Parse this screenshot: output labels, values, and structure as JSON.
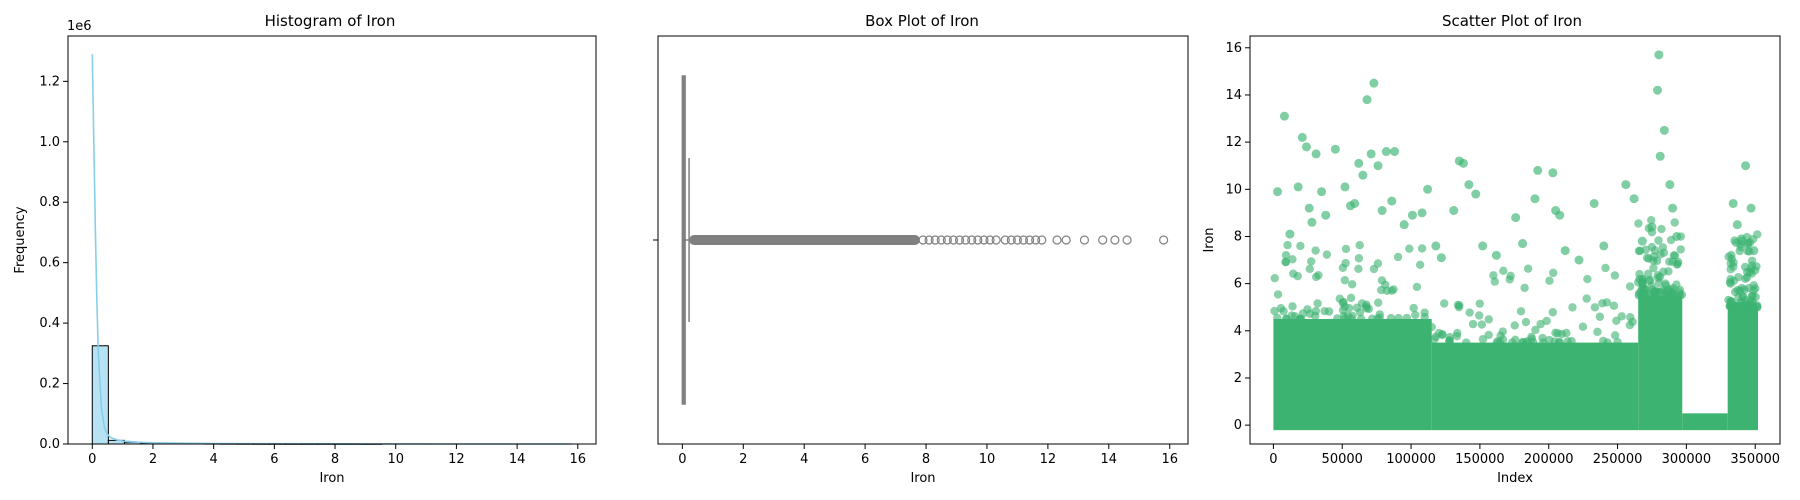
{
  "colors": {
    "histogram": "#87ceeb",
    "kde_line": "#87ceeb",
    "box": "#808080",
    "scatter": "#3cb371",
    "frame": "#000000"
  },
  "chart_data": [
    {
      "type": "bar",
      "title": "Histogram of Iron",
      "xlabel": "Iron",
      "ylabel": "Frequency",
      "y_multiplier_label": "1e6",
      "xlim": [
        -0.8,
        16.6
      ],
      "ylim": [
        0,
        1350000
      ],
      "xticks": [
        0,
        2,
        4,
        6,
        8,
        10,
        12,
        14,
        16
      ],
      "yticks": [
        0.0,
        0.2,
        0.4,
        0.6,
        0.8,
        1.0,
        1.2
      ],
      "ytick_scale": 1000000,
      "bin_width": 0.53,
      "bins": [
        {
          "x0": 0.0,
          "count": 325000
        },
        {
          "x0": 0.53,
          "count": 12000
        },
        {
          "x0": 1.06,
          "count": 6000
        },
        {
          "x0": 1.59,
          "count": 3500
        },
        {
          "x0": 2.12,
          "count": 2200
        },
        {
          "x0": 2.65,
          "count": 1500
        },
        {
          "x0": 3.18,
          "count": 1000
        },
        {
          "x0": 3.71,
          "count": 700
        },
        {
          "x0": 4.24,
          "count": 450
        },
        {
          "x0": 4.77,
          "count": 300
        },
        {
          "x0": 5.3,
          "count": 200
        },
        {
          "x0": 5.83,
          "count": 140
        },
        {
          "x0": 6.36,
          "count": 90
        },
        {
          "x0": 6.89,
          "count": 60
        },
        {
          "x0": 7.42,
          "count": 40
        },
        {
          "x0": 7.95,
          "count": 25
        },
        {
          "x0": 8.48,
          "count": 15
        },
        {
          "x0": 9.01,
          "count": 10
        }
      ],
      "kde": {
        "x": [
          0.0,
          0.05,
          0.1,
          0.15,
          0.2,
          0.3,
          0.4,
          0.5,
          0.6,
          0.8,
          1.0,
          1.5,
          2.0,
          3.0,
          4.0,
          6.0,
          8.0,
          10.0,
          12.0,
          14.0,
          15.8
        ],
        "y": [
          1290000,
          1000000,
          720000,
          480000,
          300000,
          120000,
          55000,
          32000,
          22000,
          14000,
          10000,
          6000,
          4000,
          2500,
          1700,
          900,
          500,
          300,
          150,
          80,
          40
        ]
      }
    },
    {
      "type": "box",
      "title": "Box Plot of Iron",
      "xlabel": "Iron",
      "xlim": [
        -0.8,
        16.6
      ],
      "xticks": [
        0,
        2,
        4,
        6,
        8,
        10,
        12,
        14,
        16
      ],
      "q1": 0.0,
      "median": 0.02,
      "q3": 0.09,
      "whisker_low": 0.0,
      "whisker_high": 0.22,
      "outliers_dense_range": [
        0.22,
        7.8
      ],
      "outliers": [
        7.9,
        8.1,
        8.3,
        8.5,
        8.7,
        8.9,
        9.1,
        9.3,
        9.5,
        9.7,
        9.9,
        10.1,
        10.3,
        10.6,
        10.8,
        11.0,
        11.2,
        11.4,
        11.6,
        11.8,
        12.3,
        12.6,
        13.2,
        13.8,
        14.2,
        14.6,
        15.8
      ]
    },
    {
      "type": "scatter",
      "title": "Scatter Plot of Iron",
      "xlabel": "Index",
      "ylabel": "Iron",
      "xlim": [
        -17000,
        368000
      ],
      "ylim": [
        -0.8,
        16.5
      ],
      "xticks": [
        0,
        50000,
        100000,
        150000,
        200000,
        250000,
        300000,
        350000
      ],
      "yticks": [
        0,
        2,
        4,
        6,
        8,
        10,
        12,
        14,
        16
      ],
      "density_bands": [
        {
          "x0": 0,
          "x1": 115000,
          "y": 4.5
        },
        {
          "x0": 115000,
          "x1": 265000,
          "y": 3.5
        },
        {
          "x0": 265000,
          "x1": 297000,
          "y": 5.5
        },
        {
          "x0": 297000,
          "x1": 330000,
          "y": 0.5
        },
        {
          "x0": 330000,
          "x1": 352000,
          "y": 5.0
        }
      ],
      "points": [
        {
          "x": 8000,
          "y": 13.1
        },
        {
          "x": 3000,
          "y": 9.9
        },
        {
          "x": 12000,
          "y": 8.1
        },
        {
          "x": 18000,
          "y": 10.1
        },
        {
          "x": 21000,
          "y": 12.2
        },
        {
          "x": 24000,
          "y": 11.8
        },
        {
          "x": 26000,
          "y": 9.2
        },
        {
          "x": 28000,
          "y": 8.6
        },
        {
          "x": 31000,
          "y": 11.5
        },
        {
          "x": 35000,
          "y": 9.9
        },
        {
          "x": 38000,
          "y": 8.9
        },
        {
          "x": 45000,
          "y": 11.7
        },
        {
          "x": 52000,
          "y": 10.1
        },
        {
          "x": 56000,
          "y": 9.3
        },
        {
          "x": 59000,
          "y": 9.4
        },
        {
          "x": 62000,
          "y": 11.1
        },
        {
          "x": 65000,
          "y": 10.6
        },
        {
          "x": 68000,
          "y": 13.8
        },
        {
          "x": 71000,
          "y": 11.5
        },
        {
          "x": 73000,
          "y": 14.5
        },
        {
          "x": 76000,
          "y": 11.0
        },
        {
          "x": 79000,
          "y": 9.1
        },
        {
          "x": 82000,
          "y": 11.6
        },
        {
          "x": 86000,
          "y": 9.5
        },
        {
          "x": 88000,
          "y": 11.6
        },
        {
          "x": 95000,
          "y": 8.5
        },
        {
          "x": 101000,
          "y": 8.9
        },
        {
          "x": 108000,
          "y": 9.0
        },
        {
          "x": 112000,
          "y": 10.0
        },
        {
          "x": 118000,
          "y": 7.6
        },
        {
          "x": 122000,
          "y": 7.1
        },
        {
          "x": 131000,
          "y": 9.1
        },
        {
          "x": 135000,
          "y": 11.2
        },
        {
          "x": 138000,
          "y": 11.1
        },
        {
          "x": 142000,
          "y": 10.2
        },
        {
          "x": 147000,
          "y": 9.8
        },
        {
          "x": 152000,
          "y": 7.6
        },
        {
          "x": 162000,
          "y": 7.2
        },
        {
          "x": 176000,
          "y": 8.8
        },
        {
          "x": 181000,
          "y": 7.7
        },
        {
          "x": 190000,
          "y": 9.6
        },
        {
          "x": 192000,
          "y": 10.8
        },
        {
          "x": 203000,
          "y": 10.7
        },
        {
          "x": 205000,
          "y": 9.1
        },
        {
          "x": 208000,
          "y": 8.9
        },
        {
          "x": 212000,
          "y": 7.4
        },
        {
          "x": 222000,
          "y": 7.0
        },
        {
          "x": 233000,
          "y": 9.4
        },
        {
          "x": 240000,
          "y": 7.6
        },
        {
          "x": 256000,
          "y": 10.2
        },
        {
          "x": 262000,
          "y": 9.6
        },
        {
          "x": 268000,
          "y": 7.8
        },
        {
          "x": 275000,
          "y": 8.4
        },
        {
          "x": 279000,
          "y": 14.2
        },
        {
          "x": 280000,
          "y": 15.7
        },
        {
          "x": 281000,
          "y": 11.4
        },
        {
          "x": 284000,
          "y": 12.5
        },
        {
          "x": 288000,
          "y": 10.2
        },
        {
          "x": 290000,
          "y": 9.2
        },
        {
          "x": 293000,
          "y": 8.0
        },
        {
          "x": 334000,
          "y": 9.4
        },
        {
          "x": 337000,
          "y": 8.5
        },
        {
          "x": 340000,
          "y": 7.9
        },
        {
          "x": 343000,
          "y": 11.0
        },
        {
          "x": 347000,
          "y": 9.2
        },
        {
          "x": 349000,
          "y": 7.4
        }
      ]
    }
  ]
}
